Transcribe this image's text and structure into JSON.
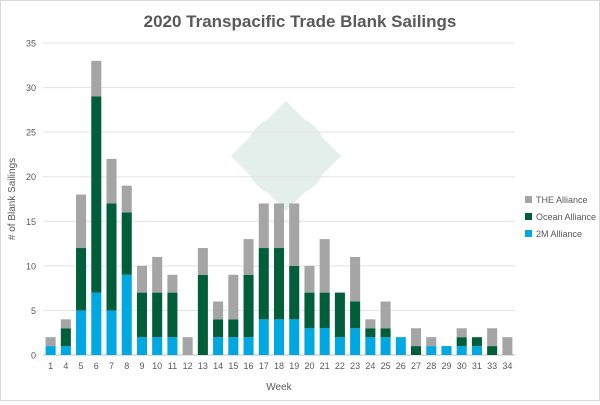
{
  "chart_data": {
    "type": "bar",
    "stacked": true,
    "title": "2020 Transpacific Trade Blank Sailings",
    "xlabel": "Week",
    "ylabel": "# of Blank Sailings",
    "ylim": [
      0,
      35
    ],
    "yticks": [
      0,
      5,
      10,
      15,
      20,
      25,
      30,
      35
    ],
    "grid": true,
    "legend_position": "right",
    "categories": [
      "1",
      "4",
      "5",
      "6",
      "7",
      "8",
      "9",
      "10",
      "11",
      "12",
      "13",
      "14",
      "15",
      "16",
      "17",
      "18",
      "19",
      "20",
      "21",
      "22",
      "23",
      "24",
      "25",
      "26",
      "27",
      "28",
      "29",
      "30",
      "31",
      "33",
      "34"
    ],
    "series": [
      {
        "name": "2M Alliance",
        "color": "#00a8e1",
        "values": [
          1,
          1,
          5,
          7,
          5,
          9,
          2,
          2,
          2,
          0,
          0,
          2,
          2,
          2,
          4,
          4,
          4,
          3,
          3,
          2,
          3,
          2,
          2,
          2,
          0,
          1,
          1,
          1,
          1,
          0,
          0
        ]
      },
      {
        "name": "Ocean Alliance",
        "color": "#005e3b",
        "values": [
          0,
          2,
          7,
          22,
          12,
          7,
          5,
          5,
          5,
          0,
          9,
          2,
          2,
          7,
          8,
          8,
          6,
          4,
          4,
          5,
          3,
          1,
          1,
          0,
          1,
          0,
          0,
          1,
          1,
          1,
          0
        ]
      },
      {
        "name": "THE Alliance",
        "color": "#a5a5a5",
        "values": [
          1,
          1,
          6,
          4,
          5,
          3,
          3,
          4,
          2,
          2,
          3,
          2,
          5,
          4,
          5,
          5,
          7,
          3,
          6,
          0,
          5,
          1,
          3,
          0,
          2,
          1,
          0,
          1,
          0,
          2,
          2
        ]
      }
    ]
  }
}
